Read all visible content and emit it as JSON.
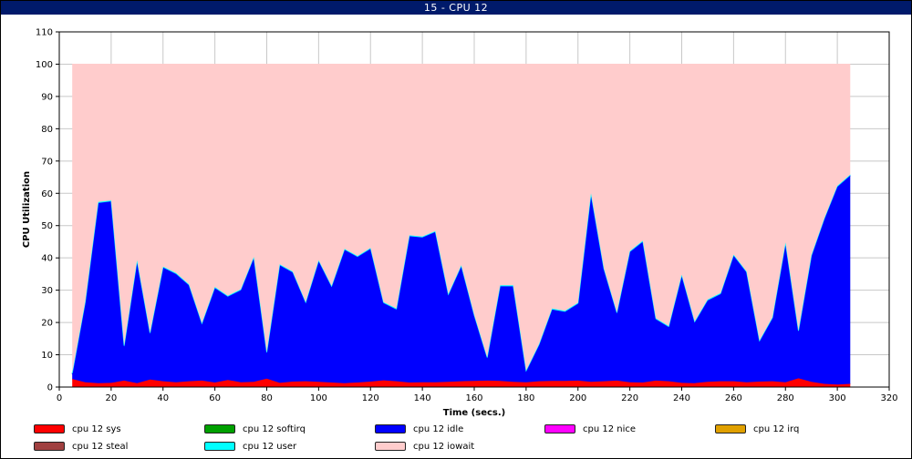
{
  "window": {
    "title": "15 - CPU 12"
  },
  "chart_data": {
    "type": "area",
    "stacked": true,
    "title": "15 - CPU 12",
    "xlabel": "Time (secs.)",
    "ylabel": "CPU Utilization",
    "xlim": [
      0,
      320
    ],
    "ylim": [
      0,
      110
    ],
    "xticks": [
      0,
      20,
      40,
      60,
      80,
      100,
      120,
      140,
      160,
      180,
      200,
      220,
      240,
      260,
      280,
      300,
      320
    ],
    "yticks": [
      0,
      10,
      20,
      30,
      40,
      50,
      60,
      70,
      80,
      90,
      100,
      110
    ],
    "grid": true,
    "legend_position": "bottom",
    "x": [
      5,
      10,
      15,
      20,
      25,
      30,
      35,
      40,
      45,
      50,
      55,
      60,
      65,
      70,
      75,
      80,
      85,
      90,
      95,
      100,
      105,
      110,
      115,
      120,
      125,
      130,
      135,
      140,
      145,
      150,
      155,
      160,
      165,
      170,
      175,
      180,
      185,
      190,
      195,
      200,
      205,
      210,
      215,
      220,
      225,
      230,
      235,
      240,
      245,
      250,
      255,
      260,
      265,
      270,
      275,
      280,
      285,
      290,
      295,
      300,
      305
    ],
    "series": [
      {
        "name": "cpu 12 sys",
        "color": "#ff0000",
        "values": [
          2.5,
          1.5,
          1.2,
          1.3,
          2,
          1.2,
          2.3,
          1.8,
          1.5,
          1.8,
          2,
          1.4,
          2.2,
          1.5,
          1.6,
          2.6,
          1.3,
          1.7,
          1.8,
          1.6,
          1.4,
          1.2,
          1.4,
          1.7,
          2.1,
          1.8,
          1.4,
          1.5,
          1.5,
          1.6,
          1.8,
          1.9,
          2,
          1.9,
          1.6,
          1.5,
          1.8,
          1.9,
          1.9,
          2,
          1.6,
          1.8,
          2,
          1.5,
          1.4,
          2,
          1.8,
          1.3,
          1.2,
          1.6,
          1.8,
          1.8,
          1.5,
          1.7,
          1.8,
          1.5,
          2.7,
          1.6,
          1,
          0.8,
          1
        ]
      },
      {
        "name": "cpu 12 softirq",
        "color": "#00a000",
        "values": [
          0,
          0,
          0,
          0,
          0,
          0,
          0,
          0,
          0,
          0,
          0,
          0,
          0,
          0,
          0,
          0,
          0,
          0,
          0,
          0,
          0,
          0,
          0,
          0,
          0,
          0,
          0,
          0,
          0,
          0,
          0,
          0,
          0,
          0,
          0,
          0,
          0,
          0,
          0,
          0,
          0,
          0,
          0,
          0,
          0,
          0,
          0,
          0,
          0,
          0,
          0,
          0,
          0,
          0,
          0,
          0,
          0,
          0,
          0,
          0,
          0
        ]
      },
      {
        "name": "cpu 12 idle",
        "color": "#0000ff",
        "values": [
          1.5,
          24.5,
          55.8,
          56.2,
          10.5,
          37.8,
          14.2,
          35.2,
          33.5,
          29.7,
          17.5,
          29.3,
          25.8,
          28.5,
          38.4,
          7.9,
          36.4,
          33.8,
          24.2,
          37.4,
          29.6,
          41.3,
          38.9,
          41.1,
          23.9,
          22.2,
          45.3,
          44.8,
          46.5,
          26.9,
          35.6,
          20.1,
          6.9,
          29.3,
          29.6,
          3.3,
          11.2,
          22.1,
          21.4,
          23.8,
          58.1,
          34.6,
          20.8,
          40.3,
          43.6,
          19,
          16.8,
          33.2,
          18.8,
          25.2,
          27,
          38.9,
          34,
          12.4,
          19.5,
          43,
          14.5,
          38.9,
          51,
          61.2,
          64.5
        ]
      },
      {
        "name": "cpu 12 nice",
        "color": "#ff00ff",
        "values": [
          0,
          0,
          0,
          0,
          0,
          0,
          0,
          0,
          0,
          0,
          0,
          0,
          0,
          0,
          0,
          0,
          0,
          0,
          0,
          0,
          0,
          0,
          0,
          0,
          0,
          0,
          0,
          0,
          0,
          0,
          0,
          0,
          0,
          0,
          0,
          0,
          0,
          0,
          0,
          0,
          0,
          0,
          0,
          0,
          0,
          0,
          0,
          0,
          0,
          0,
          0,
          0,
          0,
          0,
          0,
          0,
          0,
          0,
          0,
          0,
          0
        ]
      },
      {
        "name": "cpu 12 irq",
        "color": "#e0a000",
        "values": [
          0,
          0,
          0,
          0,
          0,
          0,
          0,
          0,
          0,
          0,
          0,
          0,
          0,
          0,
          0,
          0,
          0,
          0,
          0,
          0,
          0,
          0,
          0,
          0,
          0,
          0,
          0,
          0,
          0,
          0,
          0,
          0,
          0,
          0,
          0,
          0,
          0,
          0,
          0,
          0,
          0,
          0,
          0,
          0,
          0,
          0,
          0,
          0,
          0,
          0,
          0,
          0,
          0,
          0,
          0,
          0,
          0,
          0,
          0,
          0,
          0
        ]
      },
      {
        "name": "cpu 12 steal",
        "color": "#a04040",
        "values": [
          0,
          0,
          0,
          0,
          0,
          0,
          0,
          0,
          0,
          0,
          0,
          0,
          0,
          0,
          0,
          0,
          0,
          0,
          0,
          0,
          0,
          0,
          0,
          0,
          0,
          0,
          0,
          0,
          0,
          0,
          0,
          0,
          0,
          0,
          0,
          0,
          0,
          0,
          0,
          0,
          0,
          0,
          0,
          0,
          0,
          0,
          0,
          0,
          0,
          0,
          0,
          0,
          0,
          0,
          0,
          0,
          0,
          0,
          0,
          0,
          0
        ]
      },
      {
        "name": "cpu 12 user",
        "color": "#00ffff",
        "values": [
          0.3,
          0.3,
          0.3,
          0.3,
          0.3,
          0.3,
          0.3,
          0.3,
          0.3,
          0.3,
          0.3,
          0.3,
          0.3,
          0.3,
          0.3,
          0.3,
          0.3,
          0.3,
          0.3,
          0.3,
          0.3,
          0.3,
          0.3,
          0.3,
          0.3,
          0.3,
          0.3,
          0.3,
          0.3,
          0.3,
          0.3,
          0.3,
          0.3,
          0.3,
          0.3,
          0.3,
          0.3,
          0.3,
          0.3,
          0.3,
          0.3,
          0.3,
          0.3,
          0.3,
          0.3,
          0.3,
          0.3,
          0.3,
          0.3,
          0.3,
          0.3,
          0.3,
          0.3,
          0.3,
          0.3,
          0.3,
          0.3,
          0.3,
          0.3,
          0.3,
          0.3
        ]
      },
      {
        "name": "cpu 12 iowait",
        "color": "#ffcccc",
        "values": [
          95.7,
          73.7,
          42.7,
          42.2,
          87.2,
          60.7,
          83.2,
          62.7,
          64.7,
          68.2,
          80.2,
          69,
          71.7,
          69.7,
          59.7,
          89.2,
          62,
          64.2,
          73.7,
          60.7,
          68.7,
          57.2,
          59.4,
          56.9,
          73.7,
          75.7,
          53,
          53.4,
          51.7,
          71.2,
          62.3,
          77.7,
          90.8,
          68.5,
          68.5,
          94.9,
          86.7,
          75.7,
          76.4,
          73.9,
          40,
          63.3,
          76.9,
          57.9,
          54.7,
          78.7,
          81.1,
          65.2,
          79.7,
          72.9,
          70.9,
          59,
          64.2,
          85.6,
          78.4,
          55.2,
          82.5,
          59.2,
          47.7,
          37.7,
          34.2
        ]
      }
    ]
  },
  "legend": {
    "items": [
      {
        "label": "cpu 12 sys",
        "color": "#ff0000"
      },
      {
        "label": "cpu 12 softirq",
        "color": "#00a000"
      },
      {
        "label": "cpu 12 idle",
        "color": "#0000ff"
      },
      {
        "label": "cpu 12 nice",
        "color": "#ff00ff"
      },
      {
        "label": "cpu 12 irq",
        "color": "#e0a000"
      },
      {
        "label": "cpu 12 steal",
        "color": "#a04040"
      },
      {
        "label": "cpu 12 user",
        "color": "#00ffff"
      },
      {
        "label": "cpu 12 iowait",
        "color": "#ffcccc"
      }
    ]
  }
}
